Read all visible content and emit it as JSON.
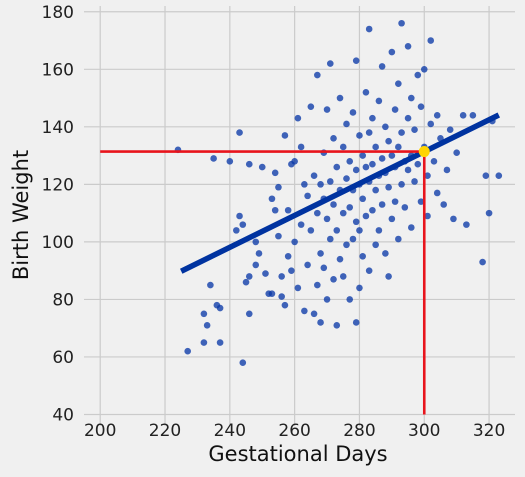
{
  "chart_data": {
    "type": "scatter",
    "title": "",
    "xlabel": "Gestational Days",
    "ylabel": "Birth Weight",
    "xlim": [
      195,
      328
    ],
    "ylim": [
      36,
      182
    ],
    "xticks": [
      200,
      220,
      240,
      260,
      280,
      300,
      320
    ],
    "yticks": [
      40,
      60,
      80,
      100,
      120,
      140,
      160,
      180
    ],
    "grid": true,
    "legend": "none",
    "colors": {
      "points": "#0b3aa8",
      "regression_line": "#0033a0",
      "guide_lines": "#e8141c",
      "highlight_point": "#ffd400",
      "background": "#f0f0f0",
      "grid": "#cbcbcb"
    },
    "regression_line": {
      "x": [
        225,
        323
      ],
      "y": [
        89.8,
        144.1
      ]
    },
    "guide": {
      "x": 300,
      "y": 131.4,
      "x_from": 200,
      "y_from": 40
    },
    "highlight_point": {
      "x": 300,
      "y": 131.4
    },
    "points": [
      [
        224,
        132
      ],
      [
        227,
        62
      ],
      [
        232,
        75
      ],
      [
        232,
        65
      ],
      [
        233,
        71
      ],
      [
        234,
        85
      ],
      [
        235,
        129
      ],
      [
        236,
        78
      ],
      [
        237,
        77
      ],
      [
        237,
        65
      ],
      [
        240,
        128
      ],
      [
        242,
        104
      ],
      [
        243,
        138
      ],
      [
        243,
        109
      ],
      [
        244,
        58
      ],
      [
        244,
        106
      ],
      [
        245,
        86
      ],
      [
        246,
        88
      ],
      [
        246,
        75
      ],
      [
        246,
        127
      ],
      [
        248,
        92
      ],
      [
        248,
        100
      ],
      [
        249,
        96
      ],
      [
        250,
        126
      ],
      [
        251,
        89
      ],
      [
        252,
        82
      ],
      [
        253,
        82
      ],
      [
        253,
        115
      ],
      [
        254,
        124
      ],
      [
        254,
        111
      ],
      [
        255,
        119
      ],
      [
        255,
        102
      ],
      [
        256,
        88
      ],
      [
        256,
        81
      ],
      [
        257,
        137
      ],
      [
        257,
        78
      ],
      [
        258,
        111
      ],
      [
        258,
        95
      ],
      [
        259,
        127
      ],
      [
        259,
        90
      ],
      [
        260,
        128
      ],
      [
        260,
        100
      ],
      [
        261,
        143
      ],
      [
        261,
        84
      ],
      [
        262,
        133
      ],
      [
        262,
        106
      ],
      [
        263,
        120
      ],
      [
        263,
        76
      ],
      [
        264,
        116
      ],
      [
        264,
        92
      ],
      [
        265,
        147
      ],
      [
        265,
        104
      ],
      [
        266,
        123
      ],
      [
        266,
        75
      ],
      [
        267,
        158
      ],
      [
        267,
        110
      ],
      [
        267,
        85
      ],
      [
        268,
        120
      ],
      [
        268,
        96
      ],
      [
        268,
        72
      ],
      [
        269,
        131
      ],
      [
        269,
        115
      ],
      [
        269,
        91
      ],
      [
        270,
        146
      ],
      [
        270,
        108
      ],
      [
        270,
        80
      ],
      [
        271,
        162
      ],
      [
        271,
        121
      ],
      [
        271,
        101
      ],
      [
        272,
        136
      ],
      [
        272,
        113
      ],
      [
        272,
        87
      ],
      [
        273,
        126
      ],
      [
        273,
        104
      ],
      [
        273,
        71
      ],
      [
        274,
        150
      ],
      [
        274,
        118
      ],
      [
        274,
        94
      ],
      [
        275,
        133
      ],
      [
        275,
        110
      ],
      [
        275,
        88
      ],
      [
        276,
        141
      ],
      [
        276,
        122
      ],
      [
        276,
        99
      ],
      [
        277,
        128
      ],
      [
        277,
        112
      ],
      [
        277,
        80
      ],
      [
        278,
        145
      ],
      [
        278,
        118
      ],
      [
        278,
        101
      ],
      [
        279,
        163
      ],
      [
        279,
        125
      ],
      [
        279,
        107
      ],
      [
        279,
        72
      ],
      [
        280,
        137
      ],
      [
        280,
        120
      ],
      [
        280,
        104
      ],
      [
        280,
        84
      ],
      [
        281,
        130
      ],
      [
        281,
        115
      ],
      [
        281,
        95
      ],
      [
        282,
        152
      ],
      [
        282,
        126
      ],
      [
        282,
        109
      ],
      [
        283,
        174
      ],
      [
        283,
        138
      ],
      [
        283,
        121
      ],
      [
        283,
        90
      ],
      [
        284,
        143
      ],
      [
        284,
        127
      ],
      [
        284,
        111
      ],
      [
        285,
        133
      ],
      [
        285,
        118
      ],
      [
        285,
        99
      ],
      [
        286,
        149
      ],
      [
        286,
        123
      ],
      [
        286,
        104
      ],
      [
        287,
        161
      ],
      [
        287,
        129
      ],
      [
        287,
        113
      ],
      [
        288,
        140
      ],
      [
        288,
        124
      ],
      [
        288,
        96
      ],
      [
        289,
        135
      ],
      [
        289,
        119
      ],
      [
        289,
        88
      ],
      [
        290,
        166
      ],
      [
        290,
        130
      ],
      [
        290,
        108
      ],
      [
        291,
        146
      ],
      [
        291,
        126
      ],
      [
        291,
        114
      ],
      [
        292,
        155
      ],
      [
        292,
        133
      ],
      [
        292,
        101
      ],
      [
        293,
        176
      ],
      [
        293,
        138
      ],
      [
        293,
        120
      ],
      [
        294,
        128
      ],
      [
        294,
        112
      ],
      [
        295,
        168
      ],
      [
        295,
        143
      ],
      [
        295,
        125
      ],
      [
        296,
        150
      ],
      [
        296,
        130
      ],
      [
        296,
        105
      ],
      [
        297,
        139
      ],
      [
        297,
        121
      ],
      [
        298,
        158
      ],
      [
        298,
        127
      ],
      [
        299,
        147
      ],
      [
        299,
        114
      ],
      [
        300,
        160
      ],
      [
        300,
        133
      ],
      [
        301,
        123
      ],
      [
        301,
        109
      ],
      [
        302,
        170
      ],
      [
        302,
        141
      ],
      [
        303,
        128
      ],
      [
        304,
        144
      ],
      [
        304,
        117
      ],
      [
        305,
        136
      ],
      [
        306,
        113
      ],
      [
        307,
        125
      ],
      [
        308,
        139
      ],
      [
        309,
        108
      ],
      [
        310,
        131
      ],
      [
        312,
        144
      ],
      [
        313,
        106
      ],
      [
        315,
        144
      ],
      [
        318,
        93
      ],
      [
        319,
        123
      ],
      [
        320,
        110
      ],
      [
        321,
        142
      ],
      [
        323,
        123
      ]
    ]
  }
}
